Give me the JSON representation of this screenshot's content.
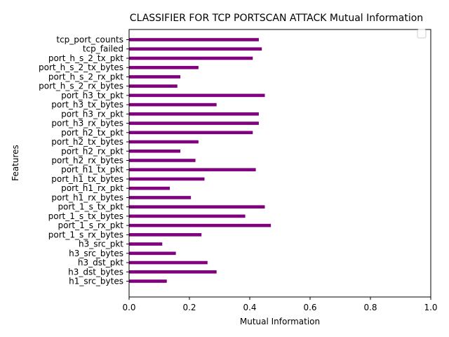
{
  "chart_data": {
    "type": "bar",
    "orientation": "horizontal",
    "title": "CLASSIFIER FOR TCP PORTSCAN ATTACK Mutual Information",
    "xlabel": "Mutual Information",
    "ylabel": "Features",
    "xlim": [
      0,
      1.0
    ],
    "xticks": [
      "0.0",
      "0.2",
      "0.4",
      "0.6",
      "0.8",
      "1.0"
    ],
    "grid": false,
    "legend": "top-right",
    "bar_color": "#800080",
    "categories": [
      "tcp_port_counts",
      "tcp_failed",
      "port_h_s_2_tx_pkt",
      "port_h_s_2_tx_bytes",
      "port_h_s_2_rx_pkt",
      "port_h_s_2_rx_bytes",
      "port_h3_tx_pkt",
      "port_h3_tx_bytes",
      "port_h3_rx_pkt",
      "port_h3_rx_bytes",
      "port_h2_tx_pkt",
      "port_h2_tx_bytes",
      "port_h2_rx_pkt",
      "port_h2_rx_bytes",
      "port_h1_tx_pkt",
      "port_h1_tx_bytes",
      "port_h1_rx_pkt",
      "port_h1_rx_bytes",
      "port_1_s_tx_pkt",
      "port_1_s_tx_bytes",
      "port_1_s_rx_pkt",
      "port_1_s_rx_bytes",
      "h3_src_pkt",
      "h3_src_bytes",
      "h3_dst_pkt",
      "h3_dst_bytes",
      "h1_src_bytes"
    ],
    "values": [
      0.43,
      0.44,
      0.41,
      0.23,
      0.17,
      0.16,
      0.45,
      0.29,
      0.43,
      0.43,
      0.41,
      0.23,
      0.17,
      0.22,
      0.42,
      0.25,
      0.135,
      0.205,
      0.45,
      0.385,
      0.47,
      0.24,
      0.11,
      0.155,
      0.26,
      0.29,
      0.125
    ]
  }
}
